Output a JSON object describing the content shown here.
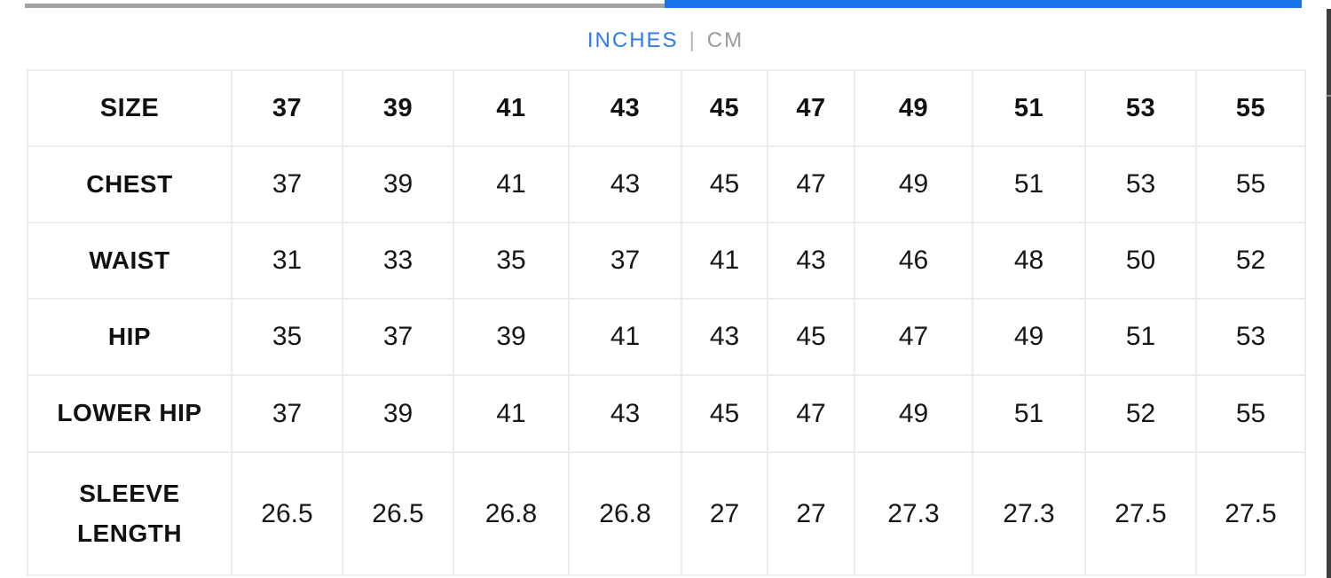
{
  "colors": {
    "accent_blue_bar": "#1a73e8",
    "active_unit_blue": "#2e7bf0",
    "inactive_unit_gray": "#9b9b9b",
    "grid_line_gray": "#ececec"
  },
  "unit_toggle": {
    "inches_label": "INCHES",
    "separator": "|",
    "cm_label": "CM",
    "active_unit": "INCHES"
  },
  "table": {
    "header_label": "SIZE",
    "sizes": [
      "37",
      "39",
      "41",
      "43",
      "45",
      "47",
      "49",
      "51",
      "53",
      "55"
    ],
    "rows": [
      {
        "label": "CHEST",
        "values": [
          "37",
          "39",
          "41",
          "43",
          "45",
          "47",
          "49",
          "51",
          "53",
          "55"
        ]
      },
      {
        "label": "WAIST",
        "values": [
          "31",
          "33",
          "35",
          "37",
          "41",
          "43",
          "46",
          "48",
          "50",
          "52"
        ]
      },
      {
        "label": "HIP",
        "values": [
          "35",
          "37",
          "39",
          "41",
          "43",
          "45",
          "47",
          "49",
          "51",
          "53"
        ]
      },
      {
        "label": "LOWER HIP",
        "values": [
          "37",
          "39",
          "41",
          "43",
          "45",
          "47",
          "49",
          "51",
          "52",
          "55"
        ]
      },
      {
        "label": "SLEEVE LENGTH",
        "values": [
          "26.5",
          "26.5",
          "26.8",
          "26.8",
          "27",
          "27",
          "27.3",
          "27.3",
          "27.5",
          "27.5"
        ]
      }
    ]
  }
}
